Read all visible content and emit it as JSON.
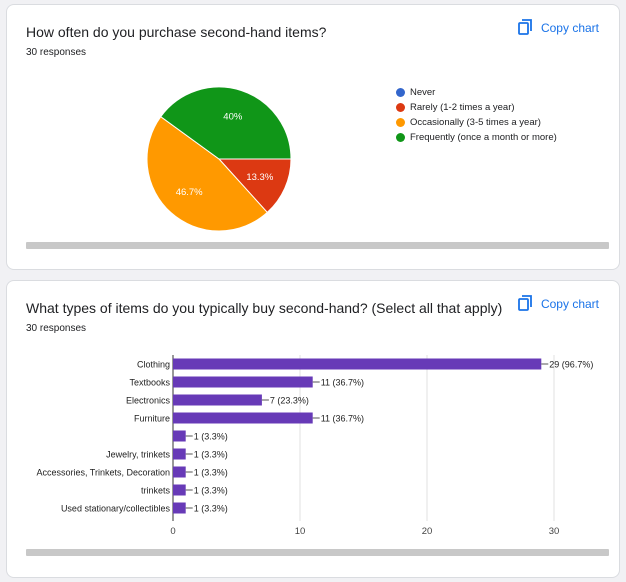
{
  "card1": {
    "title": "How often do you purchase second-hand items?",
    "responses": "30 responses",
    "copy_label": "Copy chart",
    "copy_icon": "copy-icon"
  },
  "card2": {
    "title": "What types of items do you typically buy second-hand? (Select all that apply)",
    "responses": "30 responses",
    "copy_label": "Copy chart",
    "copy_icon": "copy-icon"
  },
  "chart_data": [
    {
      "type": "pie",
      "title": "How often do you purchase second-hand items?",
      "slices": [
        {
          "label": "Never",
          "value": 0,
          "percent_label": "",
          "color": "#3366cc"
        },
        {
          "label": "Rarely (1-2 times a year)",
          "value": 13.3,
          "percent_label": "13.3%",
          "color": "#dc3912"
        },
        {
          "label": "Occasionally (3-5 times a year)",
          "value": 46.7,
          "percent_label": "46.7%",
          "color": "#ff9900"
        },
        {
          "label": "Frequently (once a month or more)",
          "value": 40,
          "percent_label": "40%",
          "color": "#109618"
        }
      ],
      "legend_position": "right"
    },
    {
      "type": "bar",
      "orientation": "horizontal",
      "title": "What types of items do you typically buy second-hand? (Select all that apply)",
      "categories": [
        "Clothing",
        "Textbooks",
        "Electronics",
        "Furniture",
        "",
        "Jewelry, trinkets",
        "Accessories, Trinkets, Decoration",
        "trinkets",
        "Used stationary/collectibles"
      ],
      "values": [
        29,
        11,
        7,
        11,
        1,
        1,
        1,
        1,
        1
      ],
      "data_labels": [
        "29 (96.7%)",
        "11 (36.7%)",
        "7 (23.3%)",
        "11 (36.7%)",
        "1 (3.3%)",
        "1 (3.3%)",
        "1 (3.3%)",
        "1 (3.3%)",
        "1 (3.3%)"
      ],
      "xlim": [
        0,
        30
      ],
      "xticks": [
        0,
        10,
        20,
        30
      ],
      "bar_color": "#673ab7",
      "grid": true
    }
  ]
}
